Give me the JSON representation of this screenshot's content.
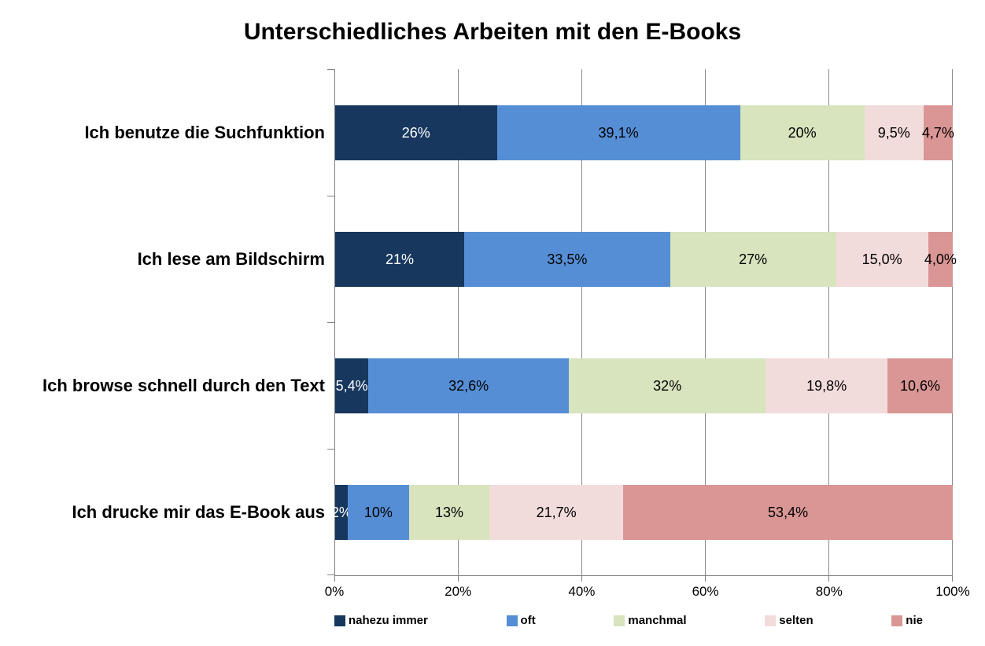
{
  "chart_data": {
    "type": "bar",
    "orientation": "horizontal",
    "stacked": "100%",
    "title": "Unterschiedliches Arbeiten mit den E-Books",
    "categories": [
      "Ich benutze die Suchfunktion",
      "Ich lese am Bildschirm",
      "Ich browse schnell durch den Text",
      "Ich drucke mir das E-Book aus"
    ],
    "series": [
      {
        "name": "nahezu immer",
        "color": "#17375E",
        "label_color": "#FFFFFF",
        "values": [
          26,
          21,
          5.4,
          2
        ],
        "labels": [
          "26%",
          "21%",
          "5,4%",
          "2%"
        ]
      },
      {
        "name": "oft",
        "color": "#558ED5",
        "label_color": "#000000",
        "values": [
          39.1,
          33.5,
          32.6,
          10
        ],
        "labels": [
          "39,1%",
          "33,5%",
          "32,6%",
          "10%"
        ]
      },
      {
        "name": "manchmal",
        "color": "#D7E4BD",
        "label_color": "#000000",
        "values": [
          20,
          27,
          32,
          13
        ],
        "labels": [
          "20%",
          "27%",
          "32%",
          "13%"
        ]
      },
      {
        "name": "selten",
        "color": "#F2DCDB",
        "label_color": "#000000",
        "values": [
          9.5,
          15.0,
          19.8,
          21.7
        ],
        "labels": [
          "9,5%",
          "15,0%",
          "19,8%",
          "21,7%"
        ]
      },
      {
        "name": "nie",
        "color": "#D99694",
        "label_color": "#000000",
        "values": [
          4.7,
          4.0,
          10.6,
          53.4
        ],
        "labels": [
          "4,7%",
          "4,0%",
          "10,6%",
          "53,4%"
        ]
      }
    ],
    "x_ticks": [
      "0%",
      "20%",
      "40%",
      "60%",
      "80%",
      "100%"
    ],
    "xlim": [
      0,
      100
    ],
    "grid": true,
    "legend_position": "bottom",
    "axis_color": "#808080",
    "gridline_color": "#8A8A8A"
  }
}
